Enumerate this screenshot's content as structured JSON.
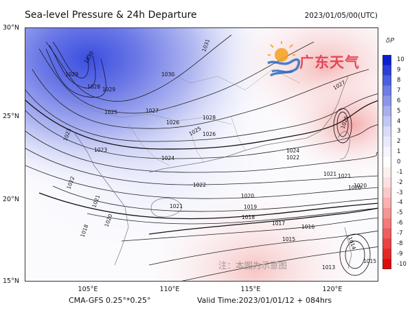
{
  "header": {
    "title": "Sea-level Pressure & 24h Departure",
    "timestamp": "2023/01/05/00(UTC)"
  },
  "axes": {
    "lat_labels": [
      "30°N",
      "25°N",
      "20°N",
      "15°N"
    ],
    "lon_labels": [
      "105°E",
      "110°E",
      "115°E",
      "120°E"
    ]
  },
  "footer": {
    "model_info": "CMA-GFS  0.25°*0.25°",
    "valid_time": "Valid Time:2023/01/01/12 + 084hrs"
  },
  "legend": {
    "title": "δP",
    "ticks": [
      "10",
      "9",
      "8",
      "7",
      "6",
      "5",
      "4",
      "3",
      "2",
      "1",
      "0",
      "-1",
      "-2",
      "-3",
      "-4",
      "-5",
      "-6",
      "-7",
      "-8",
      "-9",
      "-10"
    ],
    "colors": [
      "#0a1fd0",
      "#2c3fd8",
      "#4b5fe0",
      "#6d7ce6",
      "#8b96ea",
      "#a7afef",
      "#c1c7f3",
      "#d8dcf7",
      "#e8eafb",
      "#f4f5fd",
      "#ffffff",
      "#fff0f0",
      "#fde0e0",
      "#fbc9c9",
      "#f8b0b0",
      "#f59595",
      "#f27a7a",
      "#ee5e5e",
      "#ea4242",
      "#e62626",
      "#e00a0a"
    ]
  },
  "isobar_labels": [
    "1031",
    "1030",
    "1030",
    "1029",
    "1028",
    "1029",
    "1027",
    "1025",
    "1026",
    "1025",
    "1023",
    "1028",
    "1026",
    "1024",
    "1024",
    "1023",
    "1022",
    "1021",
    "1022",
    "1021",
    "1020",
    "1020",
    "1019",
    "1018",
    "1017",
    "1016",
    "1015",
    "1014",
    "1013",
    "1021",
    "1018",
    "1020",
    "1025",
    "1027",
    "1022",
    "1021",
    "1020",
    "1015"
  ],
  "logo": {
    "name": "广东天气",
    "icon": "sun-wave-logo"
  },
  "note": "注：本图为示意图"
}
